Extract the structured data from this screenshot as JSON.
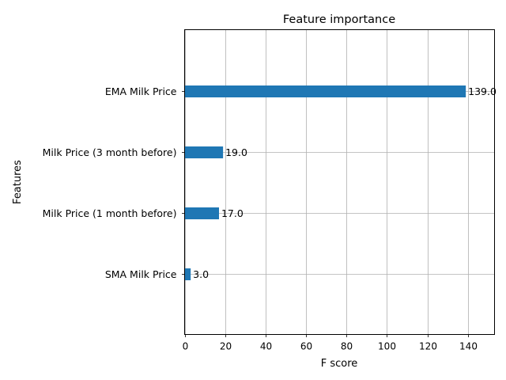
{
  "chart_data": {
    "type": "bar",
    "orientation": "horizontal",
    "title": "Feature importance",
    "xlabel": "F score",
    "ylabel": "Features",
    "xlim": [
      0,
      153.2
    ],
    "x_ticks": [
      0,
      20,
      40,
      60,
      80,
      100,
      120,
      140
    ],
    "grid": true,
    "bar_color": "#1f77b4",
    "categories": [
      "SMA Milk Price",
      "Milk Price (1 month before)",
      "Milk Price (3 month before)",
      "EMA Milk Price"
    ],
    "values": [
      3,
      17,
      19,
      139
    ],
    "data_labels": [
      "3.0",
      "17.0",
      "19.0",
      "139.0"
    ]
  }
}
